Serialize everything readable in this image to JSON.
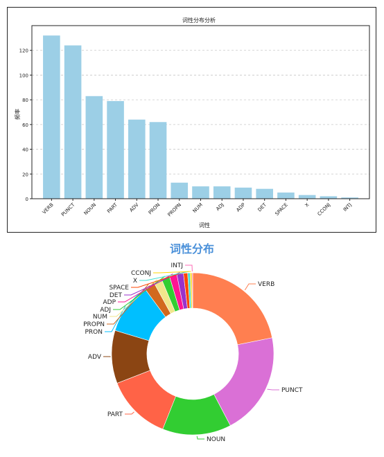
{
  "chart_data": [
    {
      "type": "bar",
      "title": "词性分布分析",
      "xlabel": "词性",
      "ylabel": "频率",
      "categories": [
        "VERB",
        "PUNCT",
        "NOUN",
        "PART",
        "ADV",
        "PRON",
        "PROPN",
        "NUM",
        "ADJ",
        "ADP",
        "DET",
        "SPACE",
        "X",
        "CCONJ",
        "INTJ"
      ],
      "values": [
        132,
        124,
        83,
        79,
        64,
        62,
        13,
        10,
        10,
        9,
        8,
        5,
        3,
        2,
        1
      ],
      "ylim": [
        0,
        140
      ],
      "yticks": [
        0,
        20,
        40,
        60,
        80,
        100,
        120
      ],
      "grid": "y-dashed",
      "color": "#9ccfe6"
    },
    {
      "type": "pie",
      "variant": "donut",
      "title": "词性分布",
      "title_color": "#4a90d9",
      "categories": [
        "VERB",
        "PUNCT",
        "NOUN",
        "PART",
        "ADV",
        "PRON",
        "PROPN",
        "NUM",
        "ADJ",
        "ADP",
        "DET",
        "SPACE",
        "X",
        "CCONJ",
        "INTJ"
      ],
      "values": [
        132,
        124,
        83,
        79,
        64,
        62,
        13,
        10,
        10,
        9,
        8,
        5,
        3,
        2,
        1
      ],
      "colors": [
        "#ff7f50",
        "#da70d6",
        "#32cd32",
        "#ff6347",
        "#8b4513",
        "#00bfff",
        "#d2691e",
        "#f0e68c",
        "#32cd32",
        "#ff1493",
        "#9932cc",
        "#ff4500",
        "#40e0d0",
        "#ffd700",
        "#ff69b4"
      ]
    }
  ]
}
